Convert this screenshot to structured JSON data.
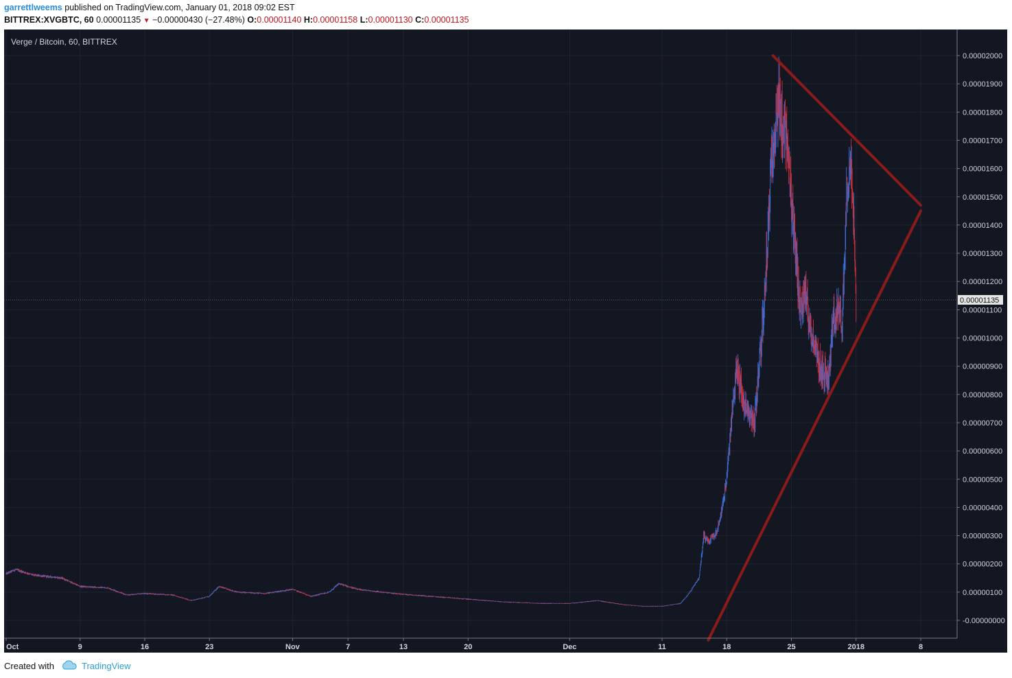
{
  "header": {
    "user": "garrettlweems",
    "published": " published on TradingView.com, January 01, 2018 09:02 EST",
    "symbol": "BITTREX:XVGBTC, 60",
    "last": "0.00001135",
    "change": "−0.00000430 (−27.48%)",
    "o_label": "O:",
    "o_value": "0.00001140",
    "h_label": "H:",
    "h_value": "0.00001158",
    "l_label": "L:",
    "l_value": "0.00001130",
    "c_label": "C:",
    "c_value": "0.00001135"
  },
  "footer": {
    "created": "Created with",
    "brand": "TradingView"
  },
  "colors": {
    "background": "#131722",
    "up": "#3d6fd8",
    "down": "#d12f3a",
    "trendline": "#8b1a1a",
    "axis_text": "#d1d4dc"
  },
  "chart_data": {
    "type": "candlestick",
    "title": "Verge / Bitcoin, 60, BITTREX",
    "xlabel": "",
    "ylabel": "",
    "x_ticks": [
      "Oct",
      "9",
      "16",
      "23",
      "Nov",
      "7",
      "13",
      "20",
      "Dec",
      "11",
      "18",
      "25",
      "2018",
      "8"
    ],
    "x_tick_dates": [
      "2017-10-01",
      "2017-10-09",
      "2017-10-16",
      "2017-10-23",
      "2017-11-01",
      "2017-11-07",
      "2017-11-13",
      "2017-11-20",
      "2017-12-01",
      "2017-12-11",
      "2017-12-18",
      "2017-12-25",
      "2018-01-01",
      "2018-01-08"
    ],
    "y_ticks": [
      "0.00002000",
      "0.00001900",
      "0.00001800",
      "0.00001700",
      "0.00001600",
      "0.00001500",
      "0.00001400",
      "0.00001300",
      "0.00001200",
      "0.00001100",
      "0.00001000",
      "0.00000900",
      "0.00000800",
      "0.00000700",
      "0.00000600",
      "0.00000500",
      "0.00000400",
      "0.00000300",
      "0.00000200",
      "0.00000100",
      "-0.00000000"
    ],
    "ylim": [
      -5e-07,
      2.14e-05
    ],
    "last_price_label": "0.00001135",
    "last_price": 1.135e-05,
    "price_path": [
      [
        "2017-10-01",
        1.65e-06
      ],
      [
        "2017-10-02",
        1.8e-06
      ],
      [
        "2017-10-04",
        1.6e-06
      ],
      [
        "2017-10-07",
        1.5e-06
      ],
      [
        "2017-10-09",
        1.2e-06
      ],
      [
        "2017-10-12",
        1.15e-06
      ],
      [
        "2017-10-14",
        9e-07
      ],
      [
        "2017-10-16",
        9.5e-07
      ],
      [
        "2017-10-19",
        9e-07
      ],
      [
        "2017-10-21",
        7e-07
      ],
      [
        "2017-10-23",
        8.5e-07
      ],
      [
        "2017-10-24",
        1.2e-06
      ],
      [
        "2017-10-26",
        1e-06
      ],
      [
        "2017-10-29",
        9.5e-07
      ],
      [
        "2017-11-01",
        1.1e-06
      ],
      [
        "2017-11-03",
        8.5e-07
      ],
      [
        "2017-11-05",
        1e-06
      ],
      [
        "2017-11-06",
        1.3e-06
      ],
      [
        "2017-11-08",
        1.1e-06
      ],
      [
        "2017-11-12",
        9.5e-07
      ],
      [
        "2017-11-16",
        8.5e-07
      ],
      [
        "2017-11-20",
        7.5e-07
      ],
      [
        "2017-11-24",
        6.5e-07
      ],
      [
        "2017-11-28",
        6e-07
      ],
      [
        "2017-12-01",
        6e-07
      ],
      [
        "2017-12-04",
        7e-07
      ],
      [
        "2017-12-07",
        5.5e-07
      ],
      [
        "2017-12-09",
        5e-07
      ],
      [
        "2017-12-11",
        5e-07
      ],
      [
        "2017-12-13",
        6e-07
      ],
      [
        "2017-12-14",
        1e-06
      ],
      [
        "2017-12-15",
        1.5e-06
      ],
      [
        "2017-12-15T12",
        3e-06
      ],
      [
        "2017-12-16",
        2.8e-06
      ],
      [
        "2017-12-17",
        3.2e-06
      ],
      [
        "2017-12-17T12",
        4e-06
      ],
      [
        "2017-12-18",
        5e-06
      ],
      [
        "2017-12-19",
        9e-06
      ],
      [
        "2017-12-20",
        7.5e-06
      ],
      [
        "2017-12-21",
        7e-06
      ],
      [
        "2017-12-22",
        1.1e-05
      ],
      [
        "2017-12-23",
        1.7e-05
      ],
      [
        "2017-12-23T12",
        1.85e-05
      ],
      [
        "2017-12-24",
        1.75e-05
      ],
      [
        "2017-12-24T12",
        1.7e-05
      ],
      [
        "2017-12-25",
        1.45e-05
      ],
      [
        "2017-12-26",
        1.1e-05
      ],
      [
        "2017-12-26T12",
        1.15e-05
      ],
      [
        "2017-12-27",
        1.05e-05
      ],
      [
        "2017-12-28",
        9e-06
      ],
      [
        "2017-12-29",
        8.5e-06
      ],
      [
        "2017-12-29T12",
        1.05e-05
      ],
      [
        "2017-12-30",
        1.1e-05
      ],
      [
        "2017-12-30T12",
        1.05e-05
      ],
      [
        "2017-12-31",
        1.55e-05
      ],
      [
        "2017-12-31T12",
        1.65e-05
      ],
      [
        "2018-01-01",
        1.135e-05
      ]
    ],
    "trendlines": [
      {
        "from": [
          "2017-12-23",
          2e-05
        ],
        "to": [
          "2018-01-08",
          1.47e-05
        ]
      },
      {
        "from": [
          "2017-12-16",
          -7e-07
        ],
        "to": [
          "2018-01-08",
          1.45e-05
        ]
      }
    ]
  }
}
